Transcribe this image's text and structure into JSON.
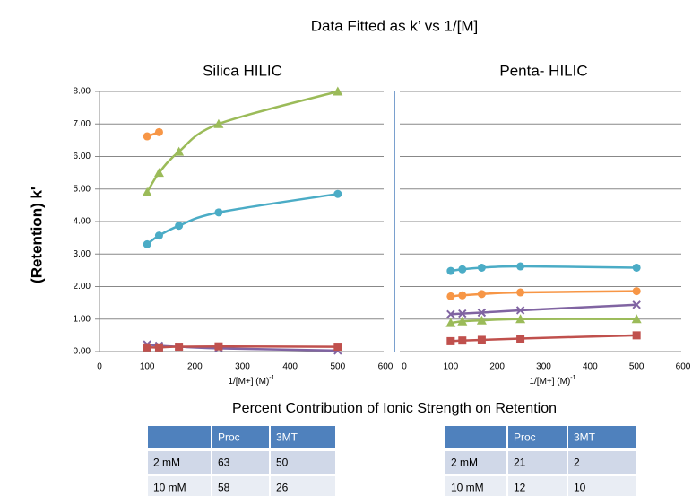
{
  "title": "Data Fitted as k’ vs 1/[M]",
  "chart_data": [
    {
      "type": "line",
      "title": "Silica HILIC",
      "y_label": "(Retention) k'",
      "x_label": "1/[M+] (M)",
      "x_label_sup": "-1",
      "x": [
        100,
        125,
        166.7,
        250,
        500
      ],
      "xlim": [
        0,
        600
      ],
      "xticks": [
        0,
        100,
        200,
        300,
        400,
        500,
        600
      ],
      "ylim": [
        0,
        8
      ],
      "yticks": [
        {
          "value": 0,
          "label": "0.00"
        },
        {
          "value": 1,
          "label": "1.00"
        },
        {
          "value": 2,
          "label": "2.00"
        },
        {
          "value": 3,
          "label": "3.00"
        },
        {
          "value": 4,
          "label": "4.00"
        },
        {
          "value": 5,
          "label": "5.00"
        },
        {
          "value": 6,
          "label": "6.00"
        },
        {
          "value": 7,
          "label": "7.00"
        },
        {
          "value": 8,
          "label": "8.00"
        }
      ],
      "show_ytick_labels": true,
      "grid": true,
      "series": [
        {
          "color": "#9bbb59",
          "marker": "triangle",
          "values": [
            4.9,
            5.5,
            6.15,
            7.0,
            8.0
          ]
        },
        {
          "color": "#4bacc6",
          "marker": "circle",
          "values": [
            3.3,
            3.57,
            3.87,
            4.28,
            4.85
          ]
        },
        {
          "color": "#f79646",
          "marker": "circle",
          "values": [
            6.62,
            6.75,
            null,
            null,
            null
          ]
        },
        {
          "color": "#8064a2",
          "marker": "cross",
          "values": [
            0.22,
            0.18,
            0.15,
            0.1,
            0.03
          ]
        },
        {
          "color": "#c0504d",
          "marker": "square",
          "values": [
            0.13,
            0.13,
            0.15,
            0.16,
            0.15
          ]
        }
      ]
    },
    {
      "type": "line",
      "title": "Penta- HILIC",
      "x_label": "1/[M+] (M)",
      "x_label_sup": "-1",
      "x": [
        100,
        125,
        166.7,
        250,
        500
      ],
      "xlim": [
        0,
        600
      ],
      "xticks": [
        0,
        100,
        200,
        300,
        400,
        500,
        600
      ],
      "ylim": [
        0,
        8
      ],
      "yticks": [
        0,
        1,
        2,
        3,
        4,
        5,
        6,
        7,
        8
      ],
      "show_ytick_labels": false,
      "grid": true,
      "series": [
        {
          "color": "#4bacc6",
          "marker": "circle",
          "values": [
            2.48,
            2.53,
            2.58,
            2.62,
            2.58
          ]
        },
        {
          "color": "#f79646",
          "marker": "circle",
          "values": [
            1.7,
            1.73,
            1.77,
            1.82,
            1.86
          ]
        },
        {
          "color": "#8064a2",
          "marker": "cross",
          "values": [
            1.15,
            1.17,
            1.2,
            1.27,
            1.44
          ]
        },
        {
          "color": "#9bbb59",
          "marker": "triangle",
          "values": [
            0.88,
            0.93,
            0.96,
            1.0,
            1.0
          ]
        },
        {
          "color": "#c0504d",
          "marker": "square",
          "values": [
            0.32,
            0.34,
            0.36,
            0.4,
            0.5
          ]
        }
      ]
    }
  ],
  "tables_title": "Percent Contribution of Ionic Strength on Retention",
  "tables": [
    {
      "header": [
        "Proc",
        "3MT"
      ],
      "rows": [
        {
          "label": "2 mM",
          "values": [
            "63",
            "50"
          ]
        },
        {
          "label": "10 mM",
          "values": [
            "58",
            "26"
          ]
        }
      ]
    },
    {
      "header": [
        "Proc",
        "3MT"
      ],
      "rows": [
        {
          "label": "2 mM",
          "values": [
            "21",
            "2"
          ]
        },
        {
          "label": "10 mM",
          "values": [
            "12",
            "10"
          ]
        }
      ]
    }
  ]
}
